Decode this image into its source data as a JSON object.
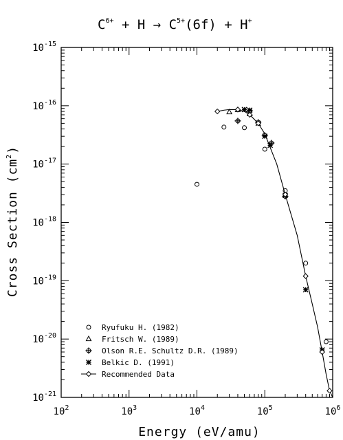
{
  "chart_data": {
    "type": "scatter",
    "title": {
      "base1": "C",
      "sup1": "6+",
      "mid": " + H → C",
      "sup2": "5+",
      "tail": "(6f) + H",
      "sup3": "+"
    },
    "xlabel": "Energy (eV/amu)",
    "ylabel_main": "Cross Section (cm",
    "ylabel_sup": "2",
    "ylabel_end": ")",
    "x_scale": "log",
    "y_scale": "log",
    "xlim": [
      100,
      1000000
    ],
    "ylim": [
      1e-21,
      1e-15
    ],
    "x_ticks": [
      {
        "value": 100,
        "base": "10",
        "exp": "2"
      },
      {
        "value": 1000,
        "base": "10",
        "exp": "3"
      },
      {
        "value": 10000,
        "base": "10",
        "exp": "4"
      },
      {
        "value": 100000,
        "base": "10",
        "exp": "5"
      },
      {
        "value": 1000000,
        "base": "10",
        "exp": "6"
      }
    ],
    "y_ticks": [
      {
        "value": 1e-21,
        "base": "10",
        "exp": "-21"
      },
      {
        "value": 1e-20,
        "base": "10",
        "exp": "-20"
      },
      {
        "value": 1e-19,
        "base": "10",
        "exp": "-19"
      },
      {
        "value": 1e-18,
        "base": "10",
        "exp": "-18"
      },
      {
        "value": 1e-17,
        "base": "10",
        "exp": "-17"
      },
      {
        "value": 1e-16,
        "base": "10",
        "exp": "-16"
      },
      {
        "value": 1e-15,
        "base": "10",
        "exp": "-15"
      }
    ],
    "legend_position": "bottom-left",
    "series": [
      {
        "name": "Ryufuku H. (1982)",
        "marker": "circle",
        "points": [
          {
            "x": 10000,
            "y": 4.5e-18
          },
          {
            "x": 25000,
            "y": 4.3e-17
          },
          {
            "x": 50000,
            "y": 4.2e-17
          },
          {
            "x": 100000,
            "y": 1.8e-17
          },
          {
            "x": 200000,
            "y": 3.5e-18
          },
          {
            "x": 400000,
            "y": 2e-19
          },
          {
            "x": 800000,
            "y": 9e-21
          }
        ]
      },
      {
        "name": "Fritsch W. (1989)",
        "marker": "triangle",
        "points": [
          {
            "x": 30000,
            "y": 7.8e-17
          },
          {
            "x": 40000,
            "y": 8.5e-17
          },
          {
            "x": 60000,
            "y": 7.2e-17
          }
        ]
      },
      {
        "name": "Olson R.E. Schultz D.R. (1989)",
        "marker": "cross-circle",
        "points": [
          {
            "x": 40000,
            "y": 5.5e-17
          },
          {
            "x": 60000,
            "y": 8.2e-17
          },
          {
            "x": 80000,
            "y": 5.2e-17
          },
          {
            "x": 100000,
            "y": 3.1e-17
          },
          {
            "x": 125000,
            "y": 2.3e-17
          },
          {
            "x": 200000,
            "y": 2.8e-18
          }
        ]
      },
      {
        "name": "Belkic D. (1991)",
        "marker": "star",
        "points": [
          {
            "x": 50000,
            "y": 8.6e-17
          },
          {
            "x": 60000,
            "y": 8.4e-17
          },
          {
            "x": 80000,
            "y": 5e-17
          },
          {
            "x": 100000,
            "y": 3e-17
          },
          {
            "x": 120000,
            "y": 2.1e-17
          },
          {
            "x": 200000,
            "y": 2.9e-18
          },
          {
            "x": 400000,
            "y": 7e-20
          },
          {
            "x": 700000,
            "y": 6.5e-21
          }
        ]
      },
      {
        "name": "Recommended Data",
        "marker": "diamond-line",
        "points": [
          {
            "x": 20000,
            "y": 8e-17
          },
          {
            "x": 25000,
            "y": 8.4e-17
          },
          {
            "x": 30000,
            "y": 8.6e-17
          },
          {
            "x": 40000,
            "y": 8.6e-17
          },
          {
            "x": 50000,
            "y": 8e-17
          },
          {
            "x": 60000,
            "y": 7e-17
          },
          {
            "x": 80000,
            "y": 5e-17
          },
          {
            "x": 100000,
            "y": 3.3e-17
          },
          {
            "x": 150000,
            "y": 1e-17
          },
          {
            "x": 200000,
            "y": 3e-18
          },
          {
            "x": 300000,
            "y": 6e-19
          },
          {
            "x": 400000,
            "y": 1.2e-19
          },
          {
            "x": 500000,
            "y": 4e-20
          },
          {
            "x": 600000,
            "y": 1.6e-20
          },
          {
            "x": 700000,
            "y": 6e-21
          },
          {
            "x": 800000,
            "y": 2.5e-21
          },
          {
            "x": 900000,
            "y": 1.3e-21
          },
          {
            "x": 1000000,
            "y": 1e-21
          }
        ],
        "marker_points_x": [
          20000,
          40000,
          60000,
          80000,
          200000,
          400000,
          700000,
          900000
        ]
      }
    ]
  }
}
